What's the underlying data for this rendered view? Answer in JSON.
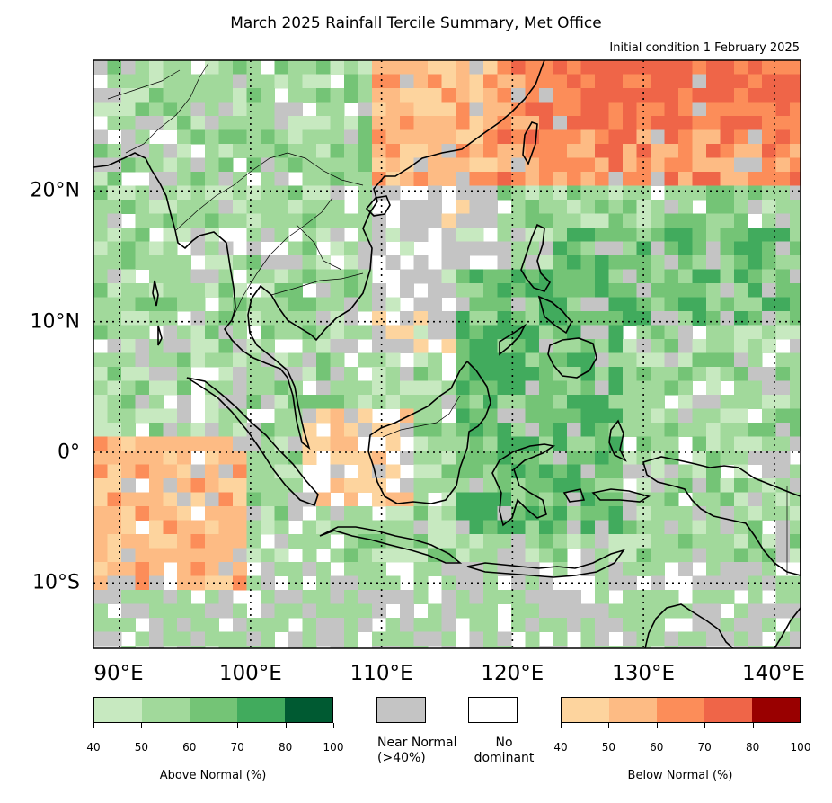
{
  "title": "March 2025 Rainfall Tercile Summary, Met Office",
  "subtitle": "Initial condition 1 February 2025",
  "map": {
    "lon_range": [
      88,
      142
    ],
    "lat_range": [
      -15,
      30
    ],
    "lat_gridlines": [
      20,
      10,
      0,
      -10
    ],
    "lon_gridlines": [
      90,
      100,
      110,
      120,
      130,
      140
    ],
    "lat_labels": [
      "20°N",
      "10°N",
      "0°",
      "10°S"
    ],
    "lon_labels": [
      "90°E",
      "100°E",
      "110°E",
      "120°E",
      "130°E",
      "140°E"
    ]
  },
  "legend": {
    "above": {
      "caption": "Above Normal (%)",
      "ticks": [
        "40",
        "50",
        "60",
        "70",
        "80",
        "100"
      ],
      "colors": [
        "#c7e9c0",
        "#a1d99b",
        "#74c476",
        "#41ab5d",
        "#005a32"
      ]
    },
    "near_normal": {
      "line1": "Near Normal",
      "line2": "(>40%)",
      "color": "#c4c4c4"
    },
    "no_dominant": {
      "line1": "No",
      "line2": "dominant",
      "color": "#ffffff"
    },
    "below": {
      "caption": "Below Normal (%)",
      "ticks": [
        "40",
        "50",
        "60",
        "70",
        "80",
        "100"
      ],
      "colors": [
        "#fdd49e",
        "#fdbb84",
        "#fc8d59",
        "#ef6548",
        "#990000"
      ]
    }
  }
}
